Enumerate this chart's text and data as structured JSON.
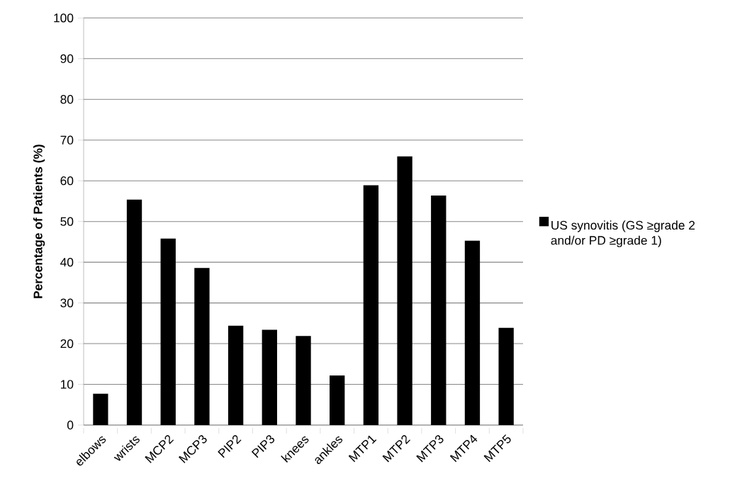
{
  "chart_data": {
    "type": "bar",
    "ylabel": "Percentage of Patients (%)",
    "categories": [
      "elbows",
      "wrists",
      "MCP2",
      "MCP3",
      "PIP2",
      "PIP3",
      "knees",
      "ankles",
      "MTP1",
      "MTP2",
      "MTP3",
      "MTP4",
      "MTP5"
    ],
    "series": [
      {
        "name": "US synovitis (GS ≥grade 2 and/or PD ≥grade 1)",
        "color": "#000000",
        "values": [
          7.7,
          55.4,
          45.8,
          38.6,
          24.4,
          23.4,
          21.9,
          12.2,
          58.9,
          66.0,
          56.4,
          45.3,
          23.9
        ]
      }
    ],
    "ylim": [
      0,
      100
    ],
    "yticks": [
      0,
      10,
      20,
      30,
      40,
      50,
      60,
      70,
      80,
      90,
      100
    ],
    "grid": "y",
    "legend": "right"
  }
}
